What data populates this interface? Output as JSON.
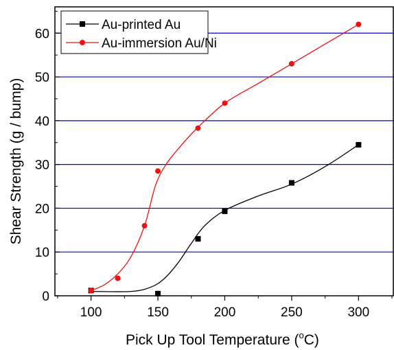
{
  "chart_data": {
    "type": "line",
    "xlabel": "Pick Up Tool Temperature (",
    "xlabel_degree": "o",
    "xlabel_unit": "C)",
    "ylabel": "Shear Strength (g / bump)",
    "xlim": [
      73,
      326
    ],
    "ylim": [
      0,
      66
    ],
    "x_ticks": [
      100,
      150,
      200,
      250,
      300
    ],
    "y_ticks": [
      0,
      10,
      20,
      30,
      40,
      50,
      60
    ],
    "y_gridlines": [
      10,
      20,
      30,
      40,
      50,
      60
    ],
    "grid_color": "#0000cc",
    "legend_position": "top-left",
    "series": [
      {
        "name": "Au-printed Au",
        "color": "#000000",
        "marker": "square",
        "x": [
          100,
          150,
          180,
          200,
          250,
          300
        ],
        "y": [
          1.2,
          0.5,
          13.0,
          19.3,
          25.8,
          34.5
        ],
        "fit_x": [
          100,
          130,
          145,
          155,
          165,
          175,
          185,
          200,
          225,
          250,
          275,
          300
        ],
        "fit_y": [
          1.0,
          1.0,
          2.0,
          4.0,
          7.5,
          12.0,
          16.0,
          19.5,
          22.8,
          25.5,
          29.5,
          34.5
        ]
      },
      {
        "name": "Au-immersion Au/Ni",
        "color": "#ee1111",
        "marker": "circle",
        "x": [
          100,
          120,
          140,
          150,
          180,
          200,
          250,
          300
        ],
        "y": [
          1.2,
          4.0,
          16.0,
          28.5,
          38.3,
          44.0,
          53.0,
          62.0
        ],
        "fit_x": [
          100,
          110,
          120,
          130,
          140,
          148,
          155,
          165,
          180,
          200,
          225,
          250,
          275,
          300
        ],
        "fit_y": [
          1.2,
          2.5,
          5.0,
          9.0,
          16.0,
          25.0,
          29.5,
          33.5,
          38.5,
          44.0,
          48.5,
          53.0,
          57.5,
          62.0
        ]
      }
    ]
  }
}
